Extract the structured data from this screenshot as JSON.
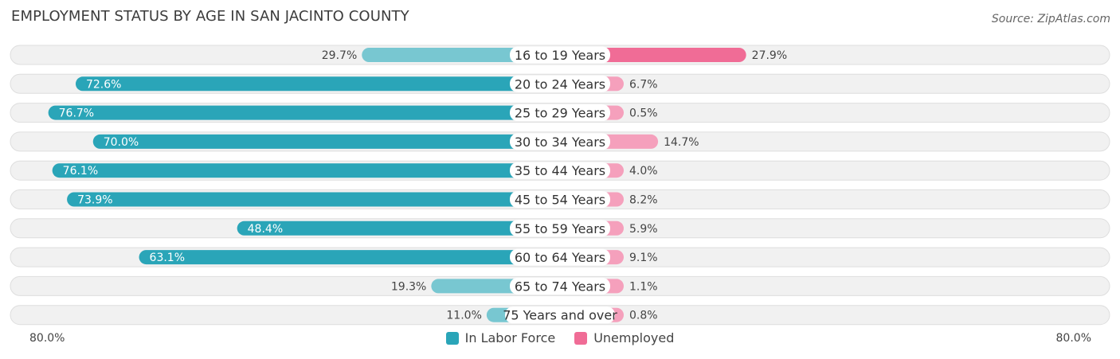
{
  "title": "EMPLOYMENT STATUS BY AGE IN SAN JACINTO COUNTY",
  "source": "Source: ZipAtlas.com",
  "axis": {
    "left_label": "80.0%",
    "right_label": "80.0%"
  },
  "legend": [
    {
      "label": "In Labor Force",
      "color": "#2aa5b8"
    },
    {
      "label": "Unemployed",
      "color": "#f06c96"
    }
  ],
  "colors": {
    "labor_dark": "#2aa5b8",
    "labor_light": "#78c7d1",
    "unemp_dark": "#f06c96",
    "unemp_light": "#f5a0bc",
    "row_bg": "#f1f1f1",
    "row_border": "#dedede"
  },
  "chart_data": {
    "type": "bar",
    "orientation": "horizontal-diverging",
    "max": 80.0,
    "categories": [
      "16 to 19 Years",
      "20 to 24 Years",
      "25 to 29 Years",
      "30 to 34 Years",
      "35 to 44 Years",
      "45 to 54 Years",
      "55 to 59 Years",
      "60 to 64 Years",
      "65 to 74 Years",
      "75 Years and over"
    ],
    "series": [
      {
        "name": "In Labor Force",
        "values": [
          29.7,
          72.6,
          76.7,
          70.0,
          76.1,
          73.9,
          48.4,
          63.1,
          19.3,
          11.0
        ]
      },
      {
        "name": "Unemployed",
        "values": [
          27.9,
          6.7,
          0.5,
          14.7,
          4.0,
          8.2,
          5.9,
          9.1,
          1.1,
          0.8
        ]
      }
    ]
  }
}
